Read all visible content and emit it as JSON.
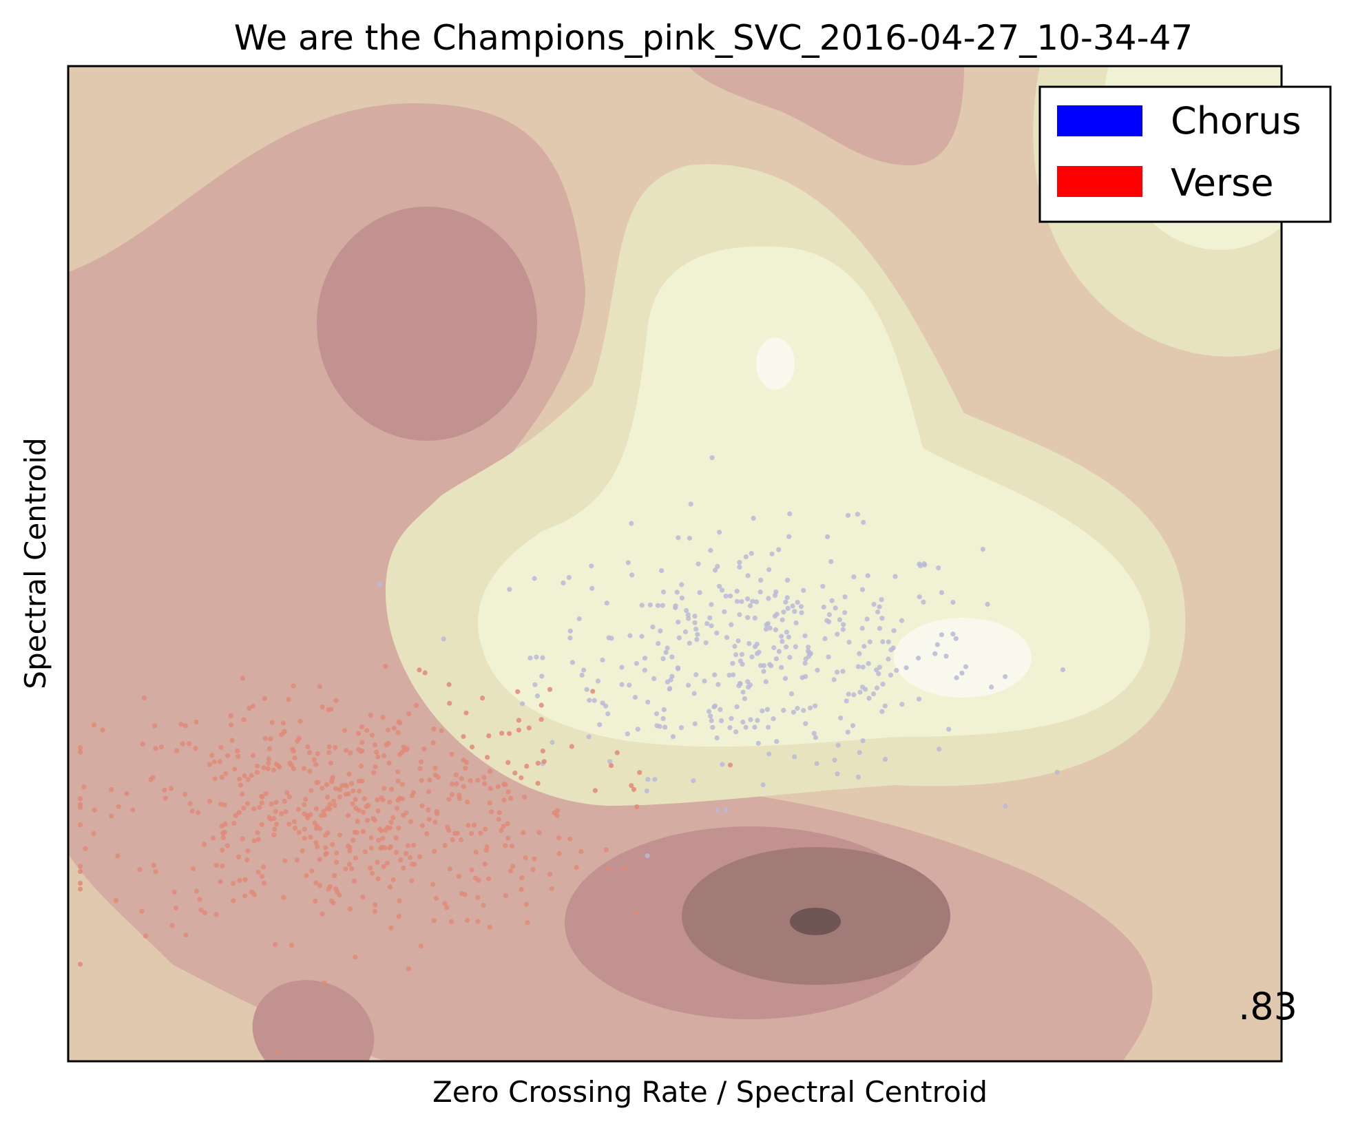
{
  "chart_data": {
    "type": "scatter",
    "title": "We are the Champions_pink_SVC_2016-04-27_10-34-47",
    "xlabel": "Zero Crossing Rate / Spectral Centroid",
    "ylabel": "Spectral Centroid",
    "xlim": [
      0,
      100
    ],
    "ylim": [
      0,
      100
    ],
    "ticks_visible": false,
    "grid": false,
    "background": "decision-function filled contours",
    "legend": {
      "placement": "top-right",
      "entries": [
        {
          "label": "Chorus",
          "color": "#0000ff"
        },
        {
          "label": "Verse",
          "color": "#ff0000"
        }
      ]
    },
    "annotation": ".83",
    "series": [
      {
        "name": "Chorus",
        "color": "#b9bad7",
        "cluster": {
          "center": [
            57,
            41
          ],
          "spread": [
            9,
            6
          ],
          "count": 380
        }
      },
      {
        "name": "Verse",
        "color": "#e08a78",
        "cluster": {
          "center": [
            23,
            25
          ],
          "spread": [
            10,
            6
          ],
          "count": 560
        }
      }
    ],
    "colors": {
      "contour_levels": [
        "#6f5554",
        "#a27b79",
        "#c29290",
        "#d4aca2",
        "#e1c9af",
        "#e8e3bf",
        "#f1f1d3",
        "#f9f8ec"
      ]
    }
  }
}
